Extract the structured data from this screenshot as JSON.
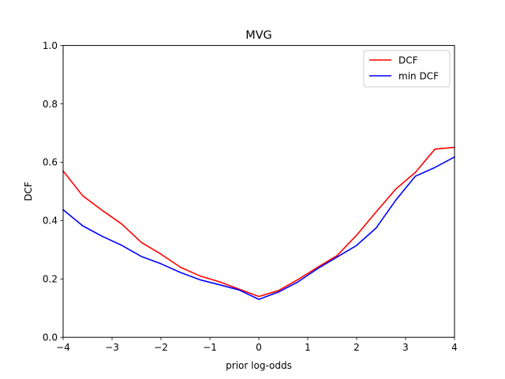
{
  "chart_data": {
    "type": "line",
    "title": "MVG",
    "xlabel": "prior log-odds",
    "ylabel": "DCF",
    "xlim": [
      -4,
      4
    ],
    "ylim": [
      0.0,
      1.0
    ],
    "xticks": [
      -4,
      -3,
      -2,
      -1,
      0,
      1,
      2,
      3,
      4
    ],
    "xtick_labels": [
      "−4",
      "−3",
      "−2",
      "−1",
      "0",
      "1",
      "2",
      "3",
      "4"
    ],
    "yticks": [
      0.0,
      0.2,
      0.4,
      0.6,
      0.8,
      1.0
    ],
    "ytick_labels": [
      "0.0",
      "0.2",
      "0.4",
      "0.6",
      "0.8",
      "1.0"
    ],
    "grid": false,
    "legend_position": "top-right",
    "x": [
      -4.0,
      -3.6,
      -3.2,
      -2.8,
      -2.4,
      -2.0,
      -1.6,
      -1.2,
      -0.8,
      -0.4,
      0.0,
      0.4,
      0.8,
      1.2,
      1.6,
      2.0,
      2.4,
      2.8,
      3.2,
      3.6,
      4.0
    ],
    "series": [
      {
        "name": "DCF",
        "color": "#ff0000",
        "values": [
          0.57,
          0.485,
          0.435,
          0.388,
          0.325,
          0.285,
          0.24,
          0.21,
          0.19,
          0.165,
          0.14,
          0.16,
          0.198,
          0.24,
          0.28,
          0.35,
          0.43,
          0.508,
          0.565,
          0.645,
          0.651
        ]
      },
      {
        "name": "min DCF",
        "color": "#0000ff",
        "values": [
          0.437,
          0.382,
          0.346,
          0.315,
          0.277,
          0.252,
          0.222,
          0.197,
          0.18,
          0.162,
          0.13,
          0.155,
          0.19,
          0.235,
          0.275,
          0.315,
          0.375,
          0.47,
          0.552,
          0.582,
          0.618
        ]
      }
    ]
  }
}
